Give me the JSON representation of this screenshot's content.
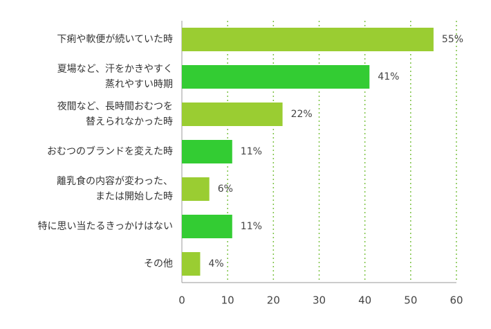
{
  "chart_data": {
    "type": "hbar",
    "categories": [
      "下痢や軟便が続いていた時",
      "夏場など、汗をかきやすく\n蒸れやすい時期",
      "夜間など、長時間おむつを\n替えられなかった時",
      "おむつのブランドを変えた時",
      "離乳食の内容が変わった、\nまたは開始した時",
      "特に思い当たるきっかけはない",
      "その他"
    ],
    "values": [
      55,
      41,
      22,
      11,
      6,
      11,
      4
    ],
    "value_labels": [
      "55%",
      "41%",
      "22%",
      "11%",
      "6%",
      "11%",
      "4%"
    ],
    "colors": [
      "#9acd32",
      "#33cc33",
      "#9acd32",
      "#33cc33",
      "#9acd32",
      "#33cc33",
      "#9acd32"
    ],
    "xlim": [
      0,
      60
    ],
    "xticks": [
      0,
      10,
      20,
      30,
      40,
      50,
      60
    ],
    "grid": true
  }
}
